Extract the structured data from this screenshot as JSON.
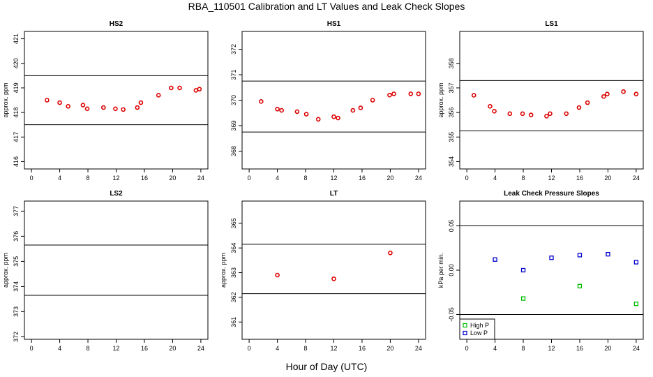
{
  "title": "RBA_110501  Calibration and LT Values and Leak Check Slopes",
  "x_title": "Hour of Day (UTC)",
  "colors": {
    "red": "#dd0000",
    "green": "#00bb00",
    "blue": "#0000cc",
    "axis": "#000000"
  },
  "chart_data": [
    {
      "id": "hs2",
      "type": "scatter",
      "title": "HS2",
      "ylabel": "approx. ppm",
      "xlim": [
        -1,
        25
      ],
      "xticks": [
        0,
        4,
        8,
        12,
        16,
        20,
        24
      ],
      "ylim": [
        415.7,
        421.3
      ],
      "yticks": [
        416,
        417,
        418,
        419,
        420,
        421
      ],
      "hlines": [
        417.5,
        419.5
      ],
      "series": [
        {
          "name": "HS2",
          "color": "red",
          "marker": "circle",
          "x": [
            2.2,
            4.0,
            5.2,
            7.3,
            7.9,
            10.2,
            11.9,
            13.0,
            15.0,
            15.5,
            18.0,
            19.8,
            21.0,
            23.3,
            23.8
          ],
          "y": [
            418.5,
            418.4,
            418.25,
            418.3,
            418.15,
            418.2,
            418.15,
            418.12,
            418.2,
            418.4,
            418.7,
            419.0,
            419.0,
            418.9,
            418.95
          ]
        }
      ]
    },
    {
      "id": "hs1",
      "type": "scatter",
      "title": "HS1",
      "ylabel": "",
      "xlim": [
        -1,
        25
      ],
      "xticks": [
        0,
        4,
        8,
        12,
        16,
        20,
        24
      ],
      "ylim": [
        367.3,
        372.7
      ],
      "yticks": [
        368,
        369,
        370,
        371,
        372
      ],
      "hlines": [
        368.75,
        370.75
      ],
      "series": [
        {
          "name": "HS1",
          "color": "red",
          "marker": "circle",
          "x": [
            1.7,
            4.0,
            4.6,
            6.8,
            8.1,
            9.8,
            12.0,
            12.6,
            14.7,
            15.8,
            17.5,
            19.9,
            20.5,
            22.9,
            24.0
          ],
          "y": [
            369.95,
            369.65,
            369.6,
            369.55,
            369.45,
            369.25,
            369.35,
            369.3,
            369.6,
            369.7,
            370.0,
            370.2,
            370.25,
            370.25,
            370.25
          ]
        }
      ]
    },
    {
      "id": "ls1",
      "type": "scatter",
      "title": "LS1",
      "ylabel": "approx. ppm",
      "xlim": [
        -1,
        25
      ],
      "xticks": [
        0,
        4,
        8,
        12,
        16,
        20,
        24
      ],
      "ylim": [
        353.7,
        359.3
      ],
      "yticks": [
        354,
        355,
        356,
        357,
        358
      ],
      "hlines": [
        355.25,
        357.3
      ],
      "series": [
        {
          "name": "LS1",
          "color": "red",
          "marker": "circle",
          "x": [
            1.0,
            3.3,
            3.9,
            6.1,
            7.9,
            9.1,
            11.3,
            11.8,
            14.1,
            15.9,
            17.1,
            19.4,
            19.9,
            22.2,
            24.0
          ],
          "y": [
            356.7,
            356.25,
            356.05,
            355.95,
            355.95,
            355.9,
            355.85,
            355.95,
            355.95,
            356.2,
            356.4,
            356.65,
            356.75,
            356.85,
            356.75
          ]
        }
      ]
    },
    {
      "id": "ls2",
      "type": "scatter",
      "title": "LS2",
      "ylabel": "approx. ppm",
      "xlim": [
        -1,
        25
      ],
      "xticks": [
        0,
        4,
        8,
        12,
        16,
        20,
        24
      ],
      "ylim": [
        371.9,
        377.4
      ],
      "yticks": [
        372,
        373,
        374,
        375,
        376,
        377
      ],
      "hlines": [
        373.65,
        375.65
      ],
      "series": []
    },
    {
      "id": "lt",
      "type": "scatter",
      "title": "LT",
      "ylabel": "approx. ppm",
      "xlim": [
        -1,
        25
      ],
      "xticks": [
        0,
        4,
        8,
        12,
        16,
        20,
        24
      ],
      "ylim": [
        360.3,
        365.9
      ],
      "yticks": [
        361,
        362,
        363,
        364,
        365
      ],
      "hlines": [
        362.15,
        364.15
      ],
      "series": [
        {
          "name": "LT",
          "color": "red",
          "marker": "circle",
          "x": [
            4.0,
            12.0,
            20.0
          ],
          "y": [
            362.9,
            362.75,
            363.8
          ]
        }
      ]
    },
    {
      "id": "leak",
      "type": "scatter",
      "title": "Leak Check Pressure Slopes",
      "ylabel": "kPa per min.",
      "xlim": [
        -1,
        25
      ],
      "xticks": [
        0,
        4,
        8,
        12,
        16,
        20,
        24
      ],
      "ylim": [
        -0.078,
        0.078
      ],
      "yticks": [
        -0.05,
        0.0,
        0.05
      ],
      "ytick_labels": [
        "-0.05",
        "0.00",
        "0.05"
      ],
      "hlines": [
        -0.05,
        0.05
      ],
      "legend": {
        "position": "bottom-left",
        "entries": [
          {
            "label": "High P",
            "color": "green"
          },
          {
            "label": "Low P",
            "color": "blue"
          }
        ]
      },
      "series": [
        {
          "name": "High P",
          "color": "green",
          "marker": "square",
          "x": [
            8.0,
            16.0,
            24.0
          ],
          "y": [
            -0.032,
            -0.018,
            -0.038
          ]
        },
        {
          "name": "Low P",
          "color": "blue",
          "marker": "square",
          "x": [
            4.0,
            8.0,
            12.0,
            16.0,
            20.0,
            24.0
          ],
          "y": [
            0.012,
            0.0,
            0.014,
            0.017,
            0.018,
            0.009
          ]
        }
      ]
    }
  ]
}
